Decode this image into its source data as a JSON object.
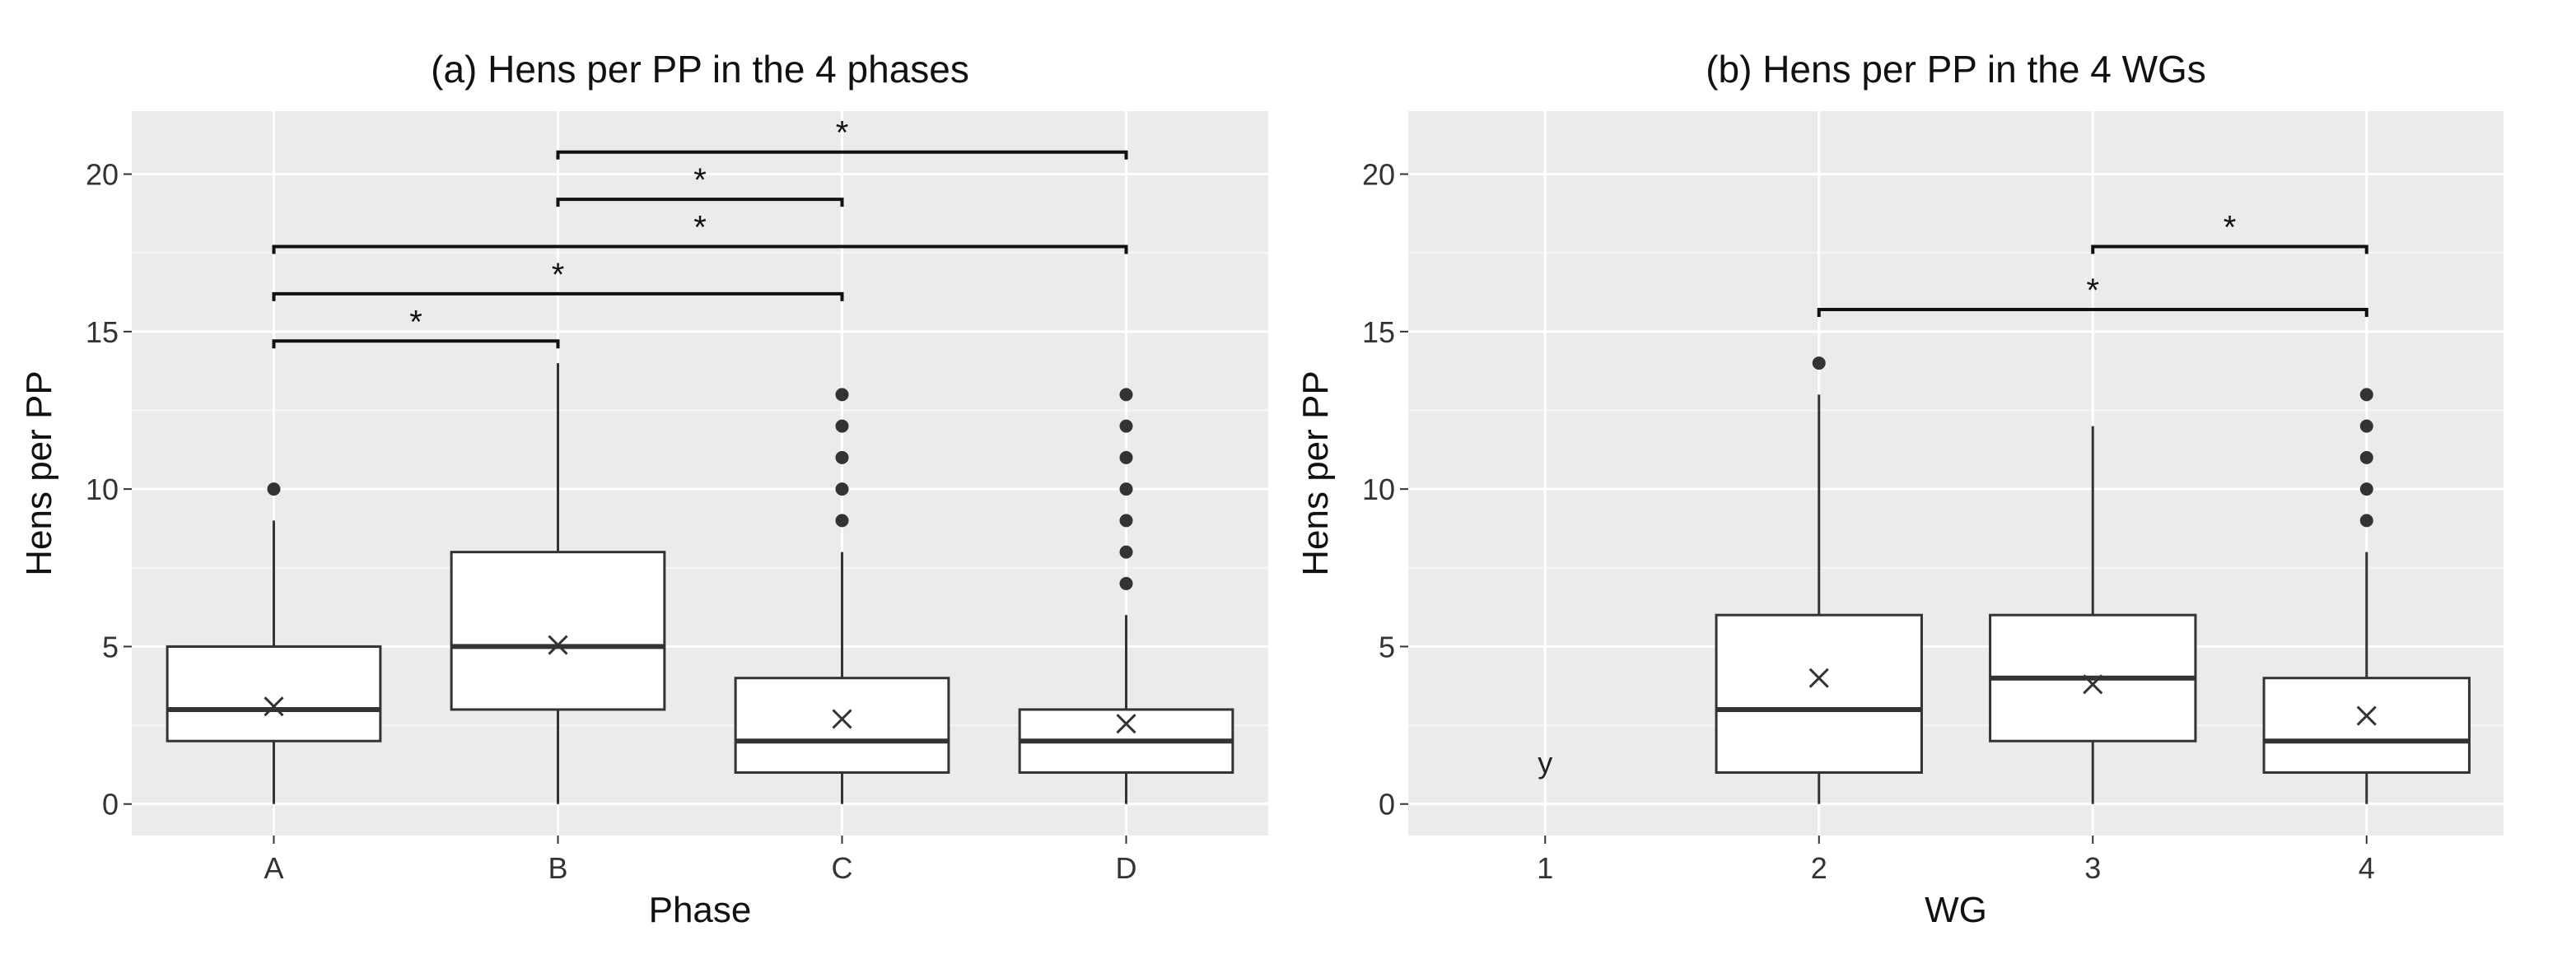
{
  "chart_data": [
    {
      "type": "boxplot",
      "title": "(a) Hens per PP in the 4 phases",
      "xlabel": "Phase",
      "ylabel": "Hens per PP",
      "ylim": [
        -1,
        22
      ],
      "yticks": [
        0,
        5,
        10,
        15,
        20
      ],
      "categories": [
        "A",
        "B",
        "C",
        "D"
      ],
      "boxes": [
        {
          "category": "A",
          "whisker_low": 0,
          "q1": 2,
          "median": 3,
          "q3": 5,
          "whisker_high": 9,
          "mean": 3.1,
          "outliers": [
            10
          ]
        },
        {
          "category": "B",
          "whisker_low": 0,
          "q1": 3,
          "median": 5,
          "q3": 8,
          "whisker_high": 14,
          "mean": 5.05,
          "outliers": []
        },
        {
          "category": "C",
          "whisker_low": 0,
          "q1": 1,
          "median": 2,
          "q3": 4,
          "whisker_high": 8,
          "mean": 2.7,
          "outliers": [
            9,
            10,
            11,
            12,
            13
          ]
        },
        {
          "category": "D",
          "whisker_low": 0,
          "q1": 1,
          "median": 2,
          "q3": 3,
          "whisker_high": 6,
          "mean": 2.55,
          "outliers": [
            7,
            8,
            9,
            10,
            11,
            12,
            13
          ]
        }
      ],
      "annotations": [],
      "significance": [
        {
          "from": "A",
          "to": "B",
          "y": 14.7,
          "label": "*"
        },
        {
          "from": "A",
          "to": "C",
          "y": 16.2,
          "label": "*"
        },
        {
          "from": "A",
          "to": "D",
          "y": 17.7,
          "label": "*"
        },
        {
          "from": "B",
          "to": "C",
          "y": 19.2,
          "label": "*"
        },
        {
          "from": "B",
          "to": "D",
          "y": 20.7,
          "label": "*"
        }
      ]
    },
    {
      "type": "boxplot",
      "title": "(b) Hens per PP in the 4 WGs",
      "xlabel": "WG",
      "ylabel": "Hens per PP",
      "ylim": [
        -1,
        22
      ],
      "yticks": [
        0,
        5,
        10,
        15,
        20
      ],
      "categories": [
        "1",
        "2",
        "3",
        "4"
      ],
      "boxes": [
        {
          "category": "2",
          "whisker_low": 0,
          "q1": 1,
          "median": 3,
          "q3": 6,
          "whisker_high": 13,
          "mean": 4.0,
          "outliers": [
            14
          ]
        },
        {
          "category": "3",
          "whisker_low": 0,
          "q1": 2,
          "median": 4,
          "q3": 6,
          "whisker_high": 12,
          "mean": 3.8,
          "outliers": []
        },
        {
          "category": "4",
          "whisker_low": 0,
          "q1": 1,
          "median": 2,
          "q3": 4,
          "whisker_high": 8,
          "mean": 2.8,
          "outliers": [
            9,
            10,
            11,
            12,
            13
          ]
        }
      ],
      "annotations": [
        {
          "category": "1",
          "y": 1.3,
          "text": "y"
        }
      ],
      "significance": [
        {
          "from": "2",
          "to": "4",
          "y": 15.7,
          "label": "*"
        },
        {
          "from": "3",
          "to": "4",
          "y": 17.7,
          "label": "*"
        }
      ]
    }
  ],
  "colors": {
    "panel_bg": "#ebebeb",
    "grid_major": "#ffffff",
    "box_fill": "#ffffff",
    "box_line": "#333333",
    "outlier": "#333333",
    "bracket": "#111111"
  }
}
